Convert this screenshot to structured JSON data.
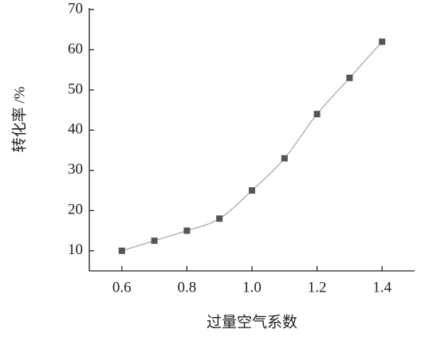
{
  "chart_data": {
    "type": "line",
    "xlabel": "过量空气系数",
    "ylabel": "转化率 /%",
    "x": [
      0.6,
      0.7,
      0.8,
      0.9,
      1.0,
      1.1,
      1.2,
      1.3,
      1.4
    ],
    "series": [
      {
        "name": null,
        "color": "#555555",
        "values": [
          10,
          12.5,
          15,
          18,
          25,
          33,
          44,
          53,
          62
        ]
      }
    ],
    "xlim": [
      0.5,
      1.5
    ],
    "xticks": [
      {
        "value": 0.6,
        "label": "0.6"
      },
      {
        "value": 0.8,
        "label": "0.8"
      },
      {
        "value": 1.0,
        "label": "1.0"
      },
      {
        "value": 1.2,
        "label": "1.2"
      },
      {
        "value": 1.4,
        "label": "1.4"
      }
    ],
    "ylim": [
      5,
      70
    ],
    "yticks": [
      10,
      20,
      30,
      40,
      50,
      60,
      70
    ],
    "grid": false,
    "smooth": true,
    "line_color": "#aaaaaa"
  }
}
